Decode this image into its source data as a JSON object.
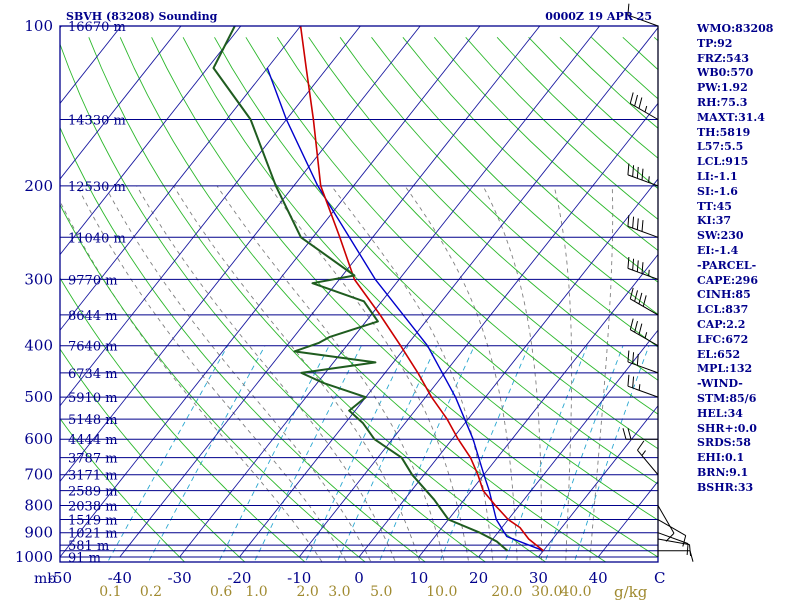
{
  "header": {
    "station_title": "SBVH (83208) Sounding",
    "valid_time": "0000Z 19 APR 25"
  },
  "colors": {
    "frame": "#00008b",
    "isobar": "#00008b",
    "isotherm": "#1a1aa0",
    "dry_adiabat": "#2db82d",
    "mixing_ratio": "#2aa7d0",
    "moist_adiabat": "#808080",
    "temperature": "#cc0000",
    "dewpoint": "#1f5c1f",
    "parcel": "#0000cc",
    "mixing_label": "#a08a30",
    "wind": "#000000"
  },
  "chart_data": {
    "type": "skew-t log-p sounding",
    "pressure_axis": {
      "unit": "mb",
      "scale": "log",
      "range": [
        1000,
        100
      ],
      "tick_labels": [
        100,
        200,
        300,
        400,
        500,
        600,
        700,
        800,
        900,
        1000
      ]
    },
    "temperature_axis": {
      "unit": "C",
      "range": [
        -50,
        50
      ],
      "tick_labels": [
        -50,
        -40,
        -30,
        -20,
        -10,
        0,
        10,
        20,
        30,
        40
      ]
    },
    "mixing_ratio_axis": {
      "unit": "g/kg",
      "tick_labels": [
        "0.1",
        "0.2",
        "0.6",
        "1.0",
        "2.0",
        "3.0",
        "5.0",
        "10.0",
        "20.0",
        "30.0",
        "40.0"
      ]
    },
    "height_levels": [
      {
        "p": 100,
        "label": "16670 m"
      },
      {
        "p": 150,
        "label": "14330 m"
      },
      {
        "p": 200,
        "label": "12530 m"
      },
      {
        "p": 250,
        "label": "11040 m"
      },
      {
        "p": 300,
        "label": "9770 m"
      },
      {
        "p": 350,
        "label": "8644 m"
      },
      {
        "p": 400,
        "label": "7640 m"
      },
      {
        "p": 450,
        "label": "6734 m"
      },
      {
        "p": 500,
        "label": "5910 m"
      },
      {
        "p": 550,
        "label": "5148 m"
      },
      {
        "p": 600,
        "label": "4444 m"
      },
      {
        "p": 650,
        "label": "3787 m"
      },
      {
        "p": 700,
        "label": "3171 m"
      },
      {
        "p": 750,
        "label": "2589 m"
      },
      {
        "p": 800,
        "label": "2038 m"
      },
      {
        "p": 850,
        "label": "1519 m"
      },
      {
        "p": 900,
        "label": "1021 m"
      },
      {
        "p": 950,
        "label": "581 m"
      },
      {
        "p": 1000,
        "label": "91 m"
      }
    ],
    "temperature_profile": [
      {
        "p": 973,
        "t": 30
      },
      {
        "p": 925,
        "t": 26
      },
      {
        "p": 880,
        "t": 23
      },
      {
        "p": 850,
        "t": 20
      },
      {
        "p": 800,
        "t": 16
      },
      {
        "p": 750,
        "t": 12
      },
      {
        "p": 700,
        "t": 9
      },
      {
        "p": 650,
        "t": 5.5
      },
      {
        "p": 600,
        "t": 1
      },
      {
        "p": 550,
        "t": -3.5
      },
      {
        "p": 500,
        "t": -9
      },
      {
        "p": 450,
        "t": -14.5
      },
      {
        "p": 400,
        "t": -21
      },
      {
        "p": 350,
        "t": -28.5
      },
      {
        "p": 300,
        "t": -37.5
      },
      {
        "p": 250,
        "t": -45.5
      },
      {
        "p": 200,
        "t": -55.5
      },
      {
        "p": 150,
        "t": -65.5
      },
      {
        "p": 120,
        "t": -73.5
      },
      {
        "p": 100,
        "t": -80
      }
    ],
    "dewpoint_profile": [
      {
        "p": 973,
        "t": 24
      },
      {
        "p": 935,
        "t": 21
      },
      {
        "p": 900,
        "t": 17
      },
      {
        "p": 850,
        "t": 10
      },
      {
        "p": 780,
        "t": 5
      },
      {
        "p": 700,
        "t": -2
      },
      {
        "p": 650,
        "t": -6
      },
      {
        "p": 600,
        "t": -13
      },
      {
        "p": 560,
        "t": -17
      },
      {
        "p": 530,
        "t": -21
      },
      {
        "p": 500,
        "t": -20
      },
      {
        "p": 470,
        "t": -29
      },
      {
        "p": 450,
        "t": -34
      },
      {
        "p": 430,
        "t": -23
      },
      {
        "p": 410,
        "t": -38
      },
      {
        "p": 395,
        "t": -35
      },
      {
        "p": 385,
        "t": -34
      },
      {
        "p": 360,
        "t": -28
      },
      {
        "p": 330,
        "t": -33
      },
      {
        "p": 305,
        "t": -44
      },
      {
        "p": 295,
        "t": -38
      },
      {
        "p": 250,
        "t": -52
      },
      {
        "p": 200,
        "t": -63
      },
      {
        "p": 150,
        "t": -76
      },
      {
        "p": 120,
        "t": -89
      },
      {
        "p": 100,
        "t": -91
      }
    ],
    "parcel_profile": [
      {
        "p": 973,
        "t": 30
      },
      {
        "p": 915,
        "t": 22
      },
      {
        "p": 850,
        "t": 18
      },
      {
        "p": 750,
        "t": 13
      },
      {
        "p": 700,
        "t": 10
      },
      {
        "p": 600,
        "t": 3.5
      },
      {
        "p": 500,
        "t": -5
      },
      {
        "p": 400,
        "t": -16.5
      },
      {
        "p": 300,
        "t": -34
      },
      {
        "p": 200,
        "t": -56
      },
      {
        "p": 150,
        "t": -70
      },
      {
        "p": 120,
        "t": -80
      }
    ],
    "wind_barbs": [
      {
        "p": 973,
        "dir": 90,
        "kt": 10
      },
      {
        "p": 925,
        "dir": 100,
        "kt": 10
      },
      {
        "p": 900,
        "dir": 110,
        "kt": 10
      },
      {
        "p": 850,
        "dir": 120,
        "kt": 10
      },
      {
        "p": 800,
        "dir": 150,
        "kt": 10
      },
      {
        "p": 700,
        "dir": 320,
        "kt": 15
      },
      {
        "p": 600,
        "dir": 270,
        "kt": 20
      },
      {
        "p": 500,
        "dir": 290,
        "kt": 25
      },
      {
        "p": 450,
        "dir": 290,
        "kt": 30
      },
      {
        "p": 400,
        "dir": 300,
        "kt": 35
      },
      {
        "p": 350,
        "dir": 300,
        "kt": 40
      },
      {
        "p": 300,
        "dir": 290,
        "kt": 45
      },
      {
        "p": 250,
        "dir": 290,
        "kt": 40
      },
      {
        "p": 200,
        "dir": 290,
        "kt": 45
      },
      {
        "p": 150,
        "dir": 300,
        "kt": 35
      },
      {
        "p": 100,
        "dir": 290,
        "kt": 10
      }
    ]
  },
  "indices": [
    "WMO:83208",
    "TP:92",
    "FRZ:543",
    "WB0:570",
    "PW:1.92",
    "RH:75.3",
    "MAXT:31.4",
    "TH:5819",
    "L57:5.5",
    "LCL:915",
    "LI:-1.1",
    "SI:-1.6",
    "TT:45",
    "KI:37",
    "SW:230",
    "EI:-1.4",
    "-PARCEL-",
    "CAPE:296",
    "CINH:85",
    "LCL:837",
    "CAP:2.2",
    "LFC:672",
    "EL:652",
    "MPL:132",
    "-WIND-",
    "STM:85/6",
    "HEL:34",
    "SHR+:0.0",
    "SRDS:58",
    "EHI:0.1",
    "BRN:9.1",
    "BSHR:33"
  ]
}
